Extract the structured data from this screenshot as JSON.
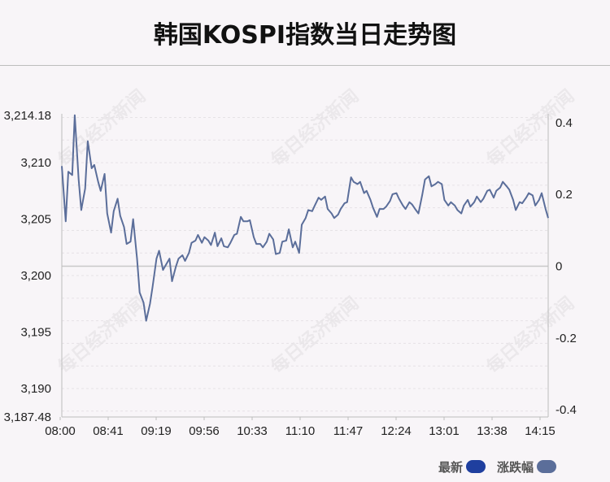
{
  "chart_data": {
    "type": "line",
    "title": "韩国KOSPI指数当日走势图",
    "xlabel": "",
    "ylabel": "",
    "x_ticks": [
      "08:00",
      "08:41",
      "09:19",
      "09:56",
      "10:33",
      "11:10",
      "11:47",
      "12:24",
      "13:01",
      "13:38",
      "14:15"
    ],
    "y_left_ticks": [
      "3,214.18",
      "3,210",
      "3,205",
      "3,200",
      "3,195",
      "3,190",
      "3,187.48"
    ],
    "y_left_values": [
      3214.18,
      3210,
      3205,
      3200,
      3195,
      3190,
      3187.48
    ],
    "y_right_ticks": [
      "0.4",
      "0.2",
      "0",
      "-0.2",
      "-0.4"
    ],
    "y_right_values": [
      0.4,
      0.2,
      0,
      -0.2,
      -0.4
    ],
    "ylim": [
      3187.48,
      3214.18
    ],
    "y2lim": [
      -0.42,
      0.42
    ],
    "xlim_minutes": [
      0,
      375
    ],
    "legend": [
      {
        "label": "最新",
        "color": "#1f3f9f"
      },
      {
        "label": "涨跌幅",
        "color": "#5b6e9a"
      }
    ],
    "series": [
      {
        "name": "最新",
        "color": "#5b6e9a",
        "x_minutes": [
          0,
          3,
          5,
          8,
          10,
          13,
          15,
          18,
          20,
          23,
          25,
          28,
          30,
          33,
          35,
          38,
          40,
          43,
          45,
          48,
          50,
          53,
          55,
          58,
          60,
          63,
          65,
          68,
          70,
          73,
          75,
          78,
          80,
          83,
          85,
          88,
          90,
          93,
          95,
          98,
          100,
          103,
          105,
          108,
          110,
          113,
          115,
          118,
          120,
          123,
          125,
          128,
          130,
          133,
          135,
          138,
          140,
          143,
          145,
          148,
          150,
          153,
          155,
          158,
          160,
          163,
          165,
          168,
          170,
          173,
          175,
          178,
          180,
          183,
          185,
          188,
          190,
          193,
          195,
          198,
          200,
          203,
          205,
          208,
          210,
          213,
          215,
          218,
          220,
          223,
          225,
          228,
          230,
          233,
          235,
          238,
          240,
          243,
          245,
          248,
          250,
          253,
          255,
          258,
          260,
          263,
          265,
          268,
          270,
          273,
          275,
          278,
          280,
          283,
          285,
          288,
          290,
          293,
          295,
          298,
          300,
          303,
          305,
          308,
          310,
          313,
          315,
          318,
          320,
          323,
          325,
          328,
          330,
          333,
          335,
          338,
          340,
          343,
          345,
          348,
          350,
          353,
          355,
          358,
          360,
          363,
          365,
          368,
          370,
          373,
          375
        ],
        "values": [
          3209.7,
          3204.8,
          3209.2,
          3208.9,
          3214.2,
          3208.5,
          3205.8,
          3207.7,
          3211.9,
          3209.5,
          3209.8,
          3208.3,
          3207.5,
          3209,
          3205.5,
          3203.8,
          3205.7,
          3206.8,
          3205.3,
          3204.3,
          3202.8,
          3203,
          3205,
          3201.5,
          3198.5,
          3197.6,
          3196,
          3197.5,
          3199,
          3201.5,
          3202.2,
          3200.5,
          3200.9,
          3201.5,
          3199.5,
          3200.8,
          3201.5,
          3201.8,
          3201.3,
          3202,
          3202.9,
          3203.1,
          3203.6,
          3202.9,
          3203.4,
          3203.1,
          3202.7,
          3203.8,
          3202.6,
          3203.3,
          3202.6,
          3202.5,
          3202.9,
          3203.6,
          3203.7,
          3205.2,
          3204.8,
          3204.8,
          3204.9,
          3203.4,
          3202.8,
          3202.8,
          3202.5,
          3203,
          3203.7,
          3203.2,
          3201.9,
          3202,
          3203,
          3203.1,
          3204.1,
          3202.5,
          3203,
          3202,
          3204.5,
          3205.1,
          3205.8,
          3205.7,
          3206.2,
          3206.9,
          3206.7,
          3207,
          3205.9,
          3205.5,
          3205.1,
          3205.4,
          3205.9,
          3206.4,
          3206.5,
          3208.7,
          3208.3,
          3208.1,
          3208.3,
          3207.3,
          3207.5,
          3206.7,
          3206,
          3205.2,
          3205.9,
          3205.9,
          3206.1,
          3206.6,
          3207.2,
          3207.3,
          3206.8,
          3206.2,
          3205.9,
          3206.5,
          3206.3,
          3205.8,
          3205.5,
          3207.2,
          3208.5,
          3208.8,
          3207.9,
          3208.1,
          3208.3,
          3208.1,
          3206.7,
          3206.2,
          3206.5,
          3206.2,
          3205.8,
          3205.5,
          3206.2,
          3206.7,
          3206.1,
          3206.5,
          3207,
          3206.5,
          3206.8,
          3207.5,
          3207.6,
          3206.9,
          3207.5,
          3207.8,
          3208.3,
          3207.9,
          3207.6,
          3206.7,
          3205.8,
          3206.5,
          3206.4,
          3206.9,
          3207.3,
          3207.1,
          3206.2,
          3206.7,
          3207.3,
          3205.9,
          3205.1
        ]
      }
    ],
    "grid": true
  }
}
